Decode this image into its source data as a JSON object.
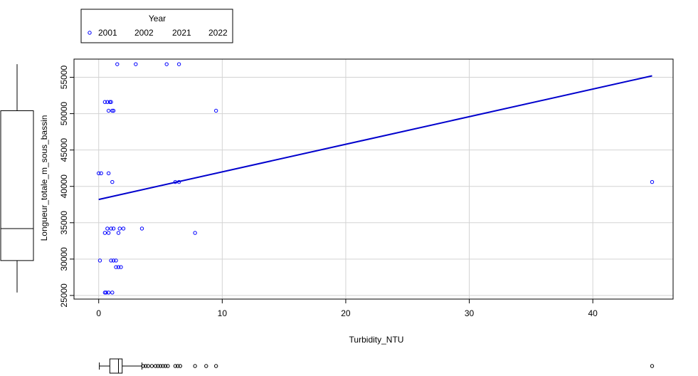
{
  "chart_data": {
    "type": "scatter",
    "title": "",
    "xlabel": "Turbidity_NTU",
    "ylabel": "Longueur_totale_m_sous_bassin",
    "xlim": [
      -2,
      46.5
    ],
    "ylim": [
      24500,
      57500
    ],
    "x_ticks": [
      0,
      10,
      20,
      30,
      40
    ],
    "y_ticks": [
      25000,
      30000,
      35000,
      40000,
      45000,
      50000,
      55000
    ],
    "grid": true,
    "legend": {
      "title": "Year",
      "placement": "top-left",
      "entries": [
        "2001",
        "2002",
        "2021",
        "2022"
      ]
    },
    "series": [
      {
        "name": "2001",
        "color": "#0000ff",
        "marker": "open-circle",
        "points": [
          {
            "x": 1.5,
            "y": 56800
          },
          {
            "x": 3.0,
            "y": 56800
          },
          {
            "x": 5.5,
            "y": 56800
          },
          {
            "x": 6.5,
            "y": 56800
          },
          {
            "x": 0.5,
            "y": 51600
          },
          {
            "x": 0.7,
            "y": 51600
          },
          {
            "x": 0.9,
            "y": 51600
          },
          {
            "x": 1.0,
            "y": 51600
          },
          {
            "x": 0.8,
            "y": 50400
          },
          {
            "x": 1.1,
            "y": 50400
          },
          {
            "x": 1.2,
            "y": 50400
          },
          {
            "x": 9.5,
            "y": 50400
          },
          {
            "x": 0.0,
            "y": 41800
          },
          {
            "x": 0.2,
            "y": 41800
          },
          {
            "x": 0.8,
            "y": 41800
          },
          {
            "x": 1.1,
            "y": 40600
          },
          {
            "x": 6.2,
            "y": 40600
          },
          {
            "x": 6.5,
            "y": 40600
          },
          {
            "x": 44.8,
            "y": 40600
          },
          {
            "x": 0.7,
            "y": 34200
          },
          {
            "x": 1.0,
            "y": 34200
          },
          {
            "x": 1.2,
            "y": 34200
          },
          {
            "x": 1.7,
            "y": 34200
          },
          {
            "x": 2.0,
            "y": 34200
          },
          {
            "x": 3.5,
            "y": 34200
          },
          {
            "x": 0.5,
            "y": 33600
          },
          {
            "x": 0.8,
            "y": 33600
          },
          {
            "x": 1.6,
            "y": 33600
          },
          {
            "x": 7.8,
            "y": 33600
          },
          {
            "x": 0.1,
            "y": 29800
          },
          {
            "x": 1.0,
            "y": 29800
          },
          {
            "x": 1.2,
            "y": 29800
          },
          {
            "x": 1.4,
            "y": 29800
          },
          {
            "x": 1.4,
            "y": 28900
          },
          {
            "x": 1.6,
            "y": 28900
          },
          {
            "x": 1.8,
            "y": 28900
          },
          {
            "x": 0.5,
            "y": 25400
          },
          {
            "x": 0.6,
            "y": 25400
          },
          {
            "x": 0.8,
            "y": 25400
          },
          {
            "x": 1.1,
            "y": 25400
          }
        ]
      }
    ],
    "regression_line": {
      "color": "#0000cd",
      "x": [
        0,
        44.8
      ],
      "y": [
        38200,
        55200
      ]
    },
    "x_boxplot": {
      "min": 0.05,
      "q1": 0.9,
      "median": 1.6,
      "q3": 1.9,
      "whisker_high": 3.5,
      "outliers": [
        3.6,
        3.8,
        4.0,
        4.3,
        4.6,
        4.8,
        5.0,
        5.2,
        5.4,
        5.6,
        6.2,
        6.4,
        6.6,
        7.8,
        8.7,
        9.5,
        44.8
      ]
    },
    "y_boxplot": {
      "min": 25400,
      "q1": 29800,
      "median": 34200,
      "q3": 50400,
      "max": 56800
    }
  }
}
